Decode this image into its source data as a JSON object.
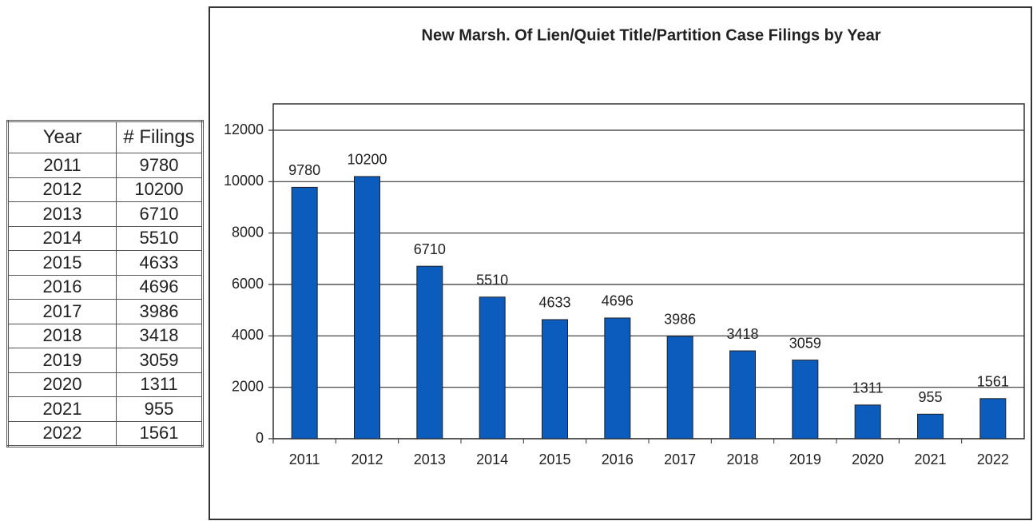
{
  "table": {
    "header": [
      "Year",
      "# Filings"
    ]
  },
  "chart_data": {
    "type": "bar",
    "title": "New Marsh. Of Lien/Quiet Title/Partition Case Filings by Year",
    "categories": [
      "2011",
      "2012",
      "2013",
      "2014",
      "2015",
      "2016",
      "2017",
      "2018",
      "2019",
      "2020",
      "2021",
      "2022"
    ],
    "values": [
      9780,
      10200,
      6710,
      5510,
      4633,
      4696,
      3986,
      3418,
      3059,
      1311,
      955,
      1561
    ],
    "color": "#0b5cbd",
    "ylim": [
      0,
      12000
    ],
    "yticks": [
      0,
      2000,
      4000,
      6000,
      8000,
      10000,
      12000
    ],
    "grid": true
  }
}
